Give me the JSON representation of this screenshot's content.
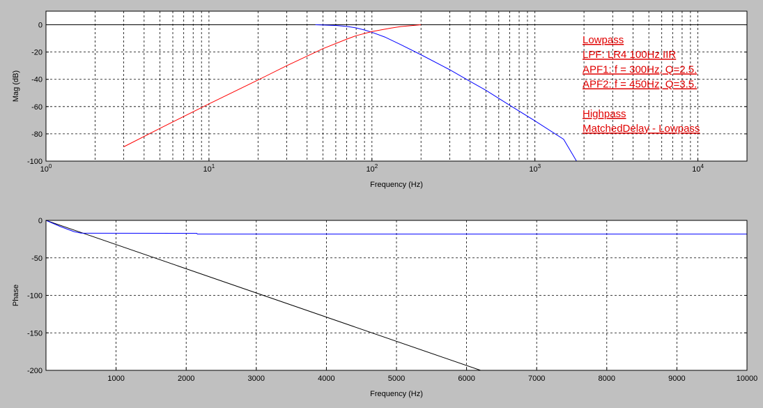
{
  "chart_data": [
    {
      "type": "line",
      "xlabel": "Frequency (Hz)",
      "ylabel": "Mag (dB)",
      "xscale": "log",
      "xlim": [
        1,
        20000
      ],
      "ylim": [
        -100,
        10
      ],
      "grid": true,
      "xticks": [
        {
          "value": 1,
          "base": "10",
          "exp": "0"
        },
        {
          "value": 10,
          "base": "10",
          "exp": "1"
        },
        {
          "value": 100,
          "base": "10",
          "exp": "2"
        },
        {
          "value": 1000,
          "base": "10",
          "exp": "3"
        },
        {
          "value": 10000,
          "base": "10",
          "exp": "4"
        }
      ],
      "yticks": [
        {
          "value": 0,
          "label": "0"
        },
        {
          "value": -20,
          "label": "-20"
        },
        {
          "value": -40,
          "label": "-40"
        },
        {
          "value": -60,
          "label": "-60"
        },
        {
          "value": -80,
          "label": "-80"
        },
        {
          "value": -100,
          "label": "-100"
        }
      ],
      "legend": {
        "position": "top-right",
        "color": "#e00000",
        "lines": [
          "Lowpass",
          "LPF: LR4 100Hz IIR",
          "APF1: f = 300Hz, Q=2.5.",
          "APF2: f = 450Hz, Q=3.5.",
          "",
          "Highpass",
          "MatchedDelay - Lowpass"
        ]
      },
      "reference_line": {
        "y": 0,
        "color": "#000000"
      },
      "series": [
        {
          "color": "#0000ff",
          "x": [
            45,
            60,
            70,
            80,
            90,
            100,
            120,
            150,
            200,
            300,
            400,
            500,
            700,
            1000,
            1500,
            1800
          ],
          "y": [
            0,
            -0.5,
            -1.2,
            -2.3,
            -3.8,
            -5.5,
            -9,
            -14.5,
            -22,
            -33,
            -41.5,
            -48,
            -59,
            -70.5,
            -84,
            -100
          ]
        },
        {
          "color": "#ff0000",
          "x": [
            3,
            5,
            10,
            20,
            30,
            50,
            70,
            80,
            100,
            130,
            150,
            200
          ],
          "y": [
            -89.5,
            -76,
            -58,
            -40.5,
            -30,
            -17.5,
            -10.5,
            -8,
            -5,
            -2.5,
            -1.3,
            0
          ]
        }
      ]
    },
    {
      "type": "line",
      "xlabel": "Frequency (Hz)",
      "ylabel": "Phase",
      "xlim": [
        0,
        10000
      ],
      "ylim": [
        -200,
        0
      ],
      "grid": true,
      "xticks": [
        {
          "value": 1000,
          "label": "1000"
        },
        {
          "value": 2000,
          "label": "2000"
        },
        {
          "value": 3000,
          "label": "3000"
        },
        {
          "value": 4000,
          "label": "4000"
        },
        {
          "value": 5000,
          "label": "5000"
        },
        {
          "value": 6000,
          "label": "6000"
        },
        {
          "value": 7000,
          "label": "7000"
        },
        {
          "value": 8000,
          "label": "8000"
        },
        {
          "value": 9000,
          "label": "9000"
        },
        {
          "value": 10000,
          "label": "10000"
        }
      ],
      "yticks": [
        {
          "value": 0,
          "label": "0"
        },
        {
          "value": -50,
          "label": "-50"
        },
        {
          "value": -100,
          "label": "-100"
        },
        {
          "value": -150,
          "label": "-150"
        },
        {
          "value": -200,
          "label": "-200"
        }
      ],
      "series": [
        {
          "color": "#000000",
          "x": [
            0,
            6200
          ],
          "y": [
            0,
            -200
          ]
        },
        {
          "color": "#0000ff",
          "x": [
            0,
            200,
            400,
            500,
            2150,
            2160,
            10000
          ],
          "y": [
            0,
            -8,
            -15,
            -17,
            -17.2,
            -18.2,
            -18.2
          ]
        }
      ]
    }
  ]
}
